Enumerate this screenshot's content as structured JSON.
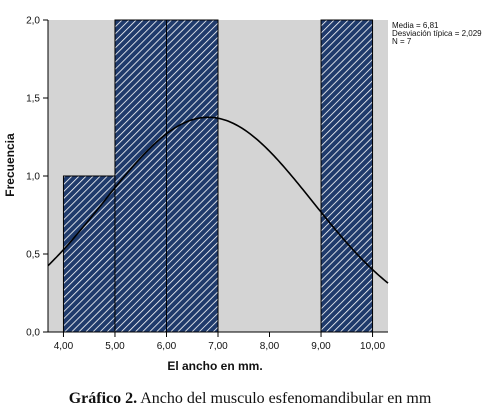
{
  "chart_data": {
    "type": "bar",
    "subtype": "histogram",
    "bins": [
      {
        "x0": 4,
        "x1": 5,
        "count": 1
      },
      {
        "x0": 5,
        "x1": 6,
        "count": 2
      },
      {
        "x0": 6,
        "x1": 7,
        "count": 2
      },
      {
        "x0": 7,
        "x1": 8,
        "count": 0
      },
      {
        "x0": 8,
        "x1": 9,
        "count": 0
      },
      {
        "x0": 9,
        "x1": 10,
        "count": 2
      }
    ],
    "normal_curve": {
      "mean": 6.81,
      "sd": 2.029,
      "n": 7,
      "bin_width": 1
    },
    "xlabel": "El ancho en mm.",
    "ylabel": "Frecuencia",
    "xlim": [
      3.7,
      10.3
    ],
    "ylim": [
      0,
      2.0
    ],
    "x_ticks": [
      "4,00",
      "5,00",
      "6,00",
      "7,00",
      "8,00",
      "9,00",
      "10,00"
    ],
    "x_tick_values": [
      4,
      5,
      6,
      7,
      8,
      9,
      10
    ],
    "y_ticks": [
      "0,0",
      "0,5",
      "1,0",
      "1,5",
      "2,0"
    ],
    "y_tick_values": [
      0,
      0.5,
      1.0,
      1.5,
      2.0
    ],
    "stats": [
      "Media = 6,81",
      "Desviación típica = 2,029",
      "N = 7"
    ],
    "legend_position": "top-right",
    "grid": false,
    "colors": {
      "plot_bg": "#d4d4d4",
      "bar_fill": "#1f3a6b",
      "bar_hatch": "#ffffff",
      "curve": "#000000"
    }
  },
  "caption": {
    "label": "Gráfico 2.",
    "text": " Ancho del musculo esfenomandibular en mm"
  }
}
